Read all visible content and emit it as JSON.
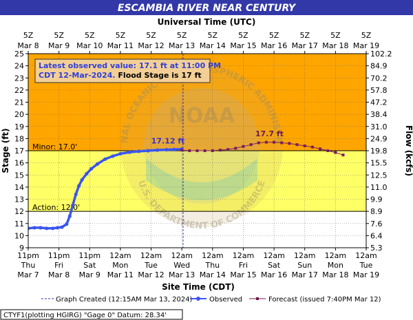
{
  "chart_data": {
    "type": "line",
    "title": "ESCAMBIA RIVER NEAR CENTURY",
    "top_axis_title": "Universal Time (UTC)",
    "bottom_axis_title": "Site Time (CDT)",
    "ylabel_left": "Stage (ft)",
    "ylabel_right": "Flow (kcfs)",
    "ylim": [
      9,
      25
    ],
    "y_ticks": [
      9,
      10,
      11,
      12,
      13,
      14,
      15,
      16,
      17,
      18,
      19,
      20,
      21,
      22,
      23,
      24,
      25
    ],
    "flow_ticks": [
      {
        "stage": 25,
        "label": "102.2"
      },
      {
        "stage": 24,
        "label": "84.9"
      },
      {
        "stage": 23,
        "label": "70.2"
      },
      {
        "stage": 22,
        "label": "57.8"
      },
      {
        "stage": 21,
        "label": "47.2"
      },
      {
        "stage": 20,
        "label": "38.4"
      },
      {
        "stage": 19,
        "label": "31.0"
      },
      {
        "stage": 18,
        "label": "24.9"
      },
      {
        "stage": 17,
        "label": "19.8"
      },
      {
        "stage": 16,
        "label": "15.5"
      },
      {
        "stage": 15,
        "label": "12.5"
      },
      {
        "stage": 14,
        "label": "11.0"
      },
      {
        "stage": 13,
        "label": "9.9"
      },
      {
        "stage": 12,
        "label": "8.9"
      },
      {
        "stage": 11,
        "label": "7.6"
      },
      {
        "stage": 10,
        "label": "6.4"
      },
      {
        "stage": 9,
        "label": "5.3"
      }
    ],
    "top_ticks": [
      {
        "line1": "5Z",
        "line2": "Mar 8"
      },
      {
        "line1": "5Z",
        "line2": "Mar 9"
      },
      {
        "line1": "5Z",
        "line2": "Mar 10"
      },
      {
        "line1": "5Z",
        "line2": "Mar 11"
      },
      {
        "line1": "5Z",
        "line2": "Mar 12"
      },
      {
        "line1": "5Z",
        "line2": "Mar 13"
      },
      {
        "line1": "5Z",
        "line2": "Mar 14"
      },
      {
        "line1": "5Z",
        "line2": "Mar 15"
      },
      {
        "line1": "5Z",
        "line2": "Mar 16"
      },
      {
        "line1": "5Z",
        "line2": "Mar 17"
      },
      {
        "line1": "5Z",
        "line2": "Mar 18"
      },
      {
        "line1": "5Z",
        "line2": "Mar 19"
      }
    ],
    "bottom_ticks": [
      {
        "line1": "11pm",
        "line2": "Thu",
        "line3": "Mar 7"
      },
      {
        "line1": "11pm",
        "line2": "Fri",
        "line3": "Mar 8"
      },
      {
        "line1": "11pm",
        "line2": "Sat",
        "line3": "Mar 9"
      },
      {
        "line1": "12am",
        "line2": "Mon",
        "line3": "Mar 11"
      },
      {
        "line1": "12am",
        "line2": "Tue",
        "line3": "Mar 12"
      },
      {
        "line1": "12am",
        "line2": "Wed",
        "line3": "Mar 13"
      },
      {
        "line1": "12am",
        "line2": "Thu",
        "line3": "Mar 14"
      },
      {
        "line1": "12am",
        "line2": "Fri",
        "line3": "Mar 15"
      },
      {
        "line1": "12am",
        "line2": "Sat",
        "line3": "Mar 16"
      },
      {
        "line1": "12am",
        "line2": "Sun",
        "line3": "Mar 17"
      },
      {
        "line1": "12am",
        "line2": "Mon",
        "line3": "Mar 18"
      },
      {
        "line1": "12am",
        "line2": "Tue",
        "line3": "Mar 19"
      }
    ],
    "thresholds": [
      {
        "name": "Minor",
        "label": "Minor: 17.0'",
        "stage": 17.0
      },
      {
        "name": "Action",
        "label": "Action: 12.0'",
        "stage": 12.0
      }
    ],
    "bands": [
      {
        "from": 12,
        "to": 17,
        "color": "#ffff66"
      },
      {
        "from": 17,
        "to": 25,
        "color": "#ffa500"
      }
    ],
    "graph_created_day": 5.04,
    "series": [
      {
        "name": "Observed",
        "color": "#3a55ee",
        "points": [
          {
            "day": 0.0,
            "stage": 10.6
          },
          {
            "day": 0.2,
            "stage": 10.65
          },
          {
            "day": 0.4,
            "stage": 10.65
          },
          {
            "day": 0.6,
            "stage": 10.6
          },
          {
            "day": 0.8,
            "stage": 10.6
          },
          {
            "day": 0.95,
            "stage": 10.65
          },
          {
            "day": 1.1,
            "stage": 10.7
          },
          {
            "day": 1.25,
            "stage": 10.95
          },
          {
            "day": 1.35,
            "stage": 11.6
          },
          {
            "day": 1.45,
            "stage": 12.5
          },
          {
            "day": 1.55,
            "stage": 13.4
          },
          {
            "day": 1.65,
            "stage": 14.1
          },
          {
            "day": 1.75,
            "stage": 14.6
          },
          {
            "day": 1.9,
            "stage": 15.1
          },
          {
            "day": 2.05,
            "stage": 15.5
          },
          {
            "day": 2.25,
            "stage": 15.9
          },
          {
            "day": 2.5,
            "stage": 16.3
          },
          {
            "day": 2.75,
            "stage": 16.55
          },
          {
            "day": 3.0,
            "stage": 16.75
          },
          {
            "day": 3.3,
            "stage": 16.88
          },
          {
            "day": 3.6,
            "stage": 16.95
          },
          {
            "day": 3.9,
            "stage": 17.0
          },
          {
            "day": 4.2,
            "stage": 17.05
          },
          {
            "day": 4.5,
            "stage": 17.08
          },
          {
            "day": 4.75,
            "stage": 17.1
          },
          {
            "day": 5.0,
            "stage": 17.12
          }
        ]
      },
      {
        "name": "Forecast (issued 7:40PM Mar 12)",
        "color": "#7a1f5c",
        "points": [
          {
            "day": 5.0,
            "stage": 17.05
          },
          {
            "day": 5.25,
            "stage": 17.0
          },
          {
            "day": 5.5,
            "stage": 17.0
          },
          {
            "day": 5.75,
            "stage": 17.0
          },
          {
            "day": 6.0,
            "stage": 17.0
          },
          {
            "day": 6.25,
            "stage": 17.05
          },
          {
            "day": 6.5,
            "stage": 17.1
          },
          {
            "day": 6.75,
            "stage": 17.2
          },
          {
            "day": 7.0,
            "stage": 17.35
          },
          {
            "day": 7.25,
            "stage": 17.5
          },
          {
            "day": 7.5,
            "stage": 17.65
          },
          {
            "day": 7.75,
            "stage": 17.7
          },
          {
            "day": 8.0,
            "stage": 17.7
          },
          {
            "day": 8.25,
            "stage": 17.65
          },
          {
            "day": 8.5,
            "stage": 17.6
          },
          {
            "day": 8.75,
            "stage": 17.5
          },
          {
            "day": 9.0,
            "stage": 17.4
          },
          {
            "day": 9.25,
            "stage": 17.3
          },
          {
            "day": 9.5,
            "stage": 17.15
          },
          {
            "day": 9.75,
            "stage": 17.0
          },
          {
            "day": 10.0,
            "stage": 16.85
          },
          {
            "day": 10.25,
            "stage": 16.65
          }
        ]
      }
    ],
    "annotations": [
      {
        "name": "observed-peak-label",
        "text": "17.12 ft",
        "day": 4.55,
        "stage": 17.6,
        "color": "#3a2fd0"
      },
      {
        "name": "forecast-peak-label",
        "text": "17.7 ft",
        "day": 7.85,
        "stage": 18.2,
        "color": "#6b1a50"
      }
    ],
    "info_box": {
      "line1": "Latest observed value: 17.1 ft at 11:00 PM",
      "line2_colored": "CDT 12-Mar-2024.",
      "line2_black": " Flood Stage is 17 ft"
    },
    "legend": {
      "graph_created": "Graph Created (12:15AM Mar 13, 2024)",
      "observed": "Observed",
      "forecast": "Forecast (issued 7:40PM Mar 12)"
    },
    "footer": "CTYF1(plotting HGIRG) \"Gage 0\" Datum: 28.34'",
    "watermark_text": [
      "NATIONAL OCEANIC AND ATMOSPHERIC ADMINISTRATION",
      "U.S. DEPARTMENT OF COMMERCE",
      "NOAA"
    ]
  }
}
